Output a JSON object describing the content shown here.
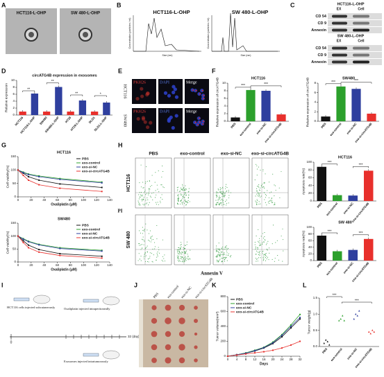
{
  "panels": {
    "A": {
      "letter": "A",
      "labels": [
        "HCT116-L-OHP",
        "SW 480-L-OHP"
      ]
    },
    "B": {
      "letter": "B",
      "charts": [
        {
          "title": "HCT116-L-OHP",
          "xlabel": "Size (nm)",
          "ylabel": "Concentration (particles / ml)"
        },
        {
          "title": "SW 480-L-OHP",
          "xlabel": "Size (nm)",
          "ylabel": "Concentration (particles / ml)"
        }
      ]
    },
    "C": {
      "letter": "C",
      "blots": [
        {
          "title": "HCT116-L-OHP",
          "columns": [
            "EX",
            "Cell"
          ],
          "rows": [
            "CD 54",
            "CD 9",
            "Annexin"
          ]
        },
        {
          "title": "SW 480-L-OHP",
          "columns": [
            "EX",
            "Cell"
          ],
          "rows": [
            "CD 54",
            "CD 9",
            "Annexin"
          ]
        }
      ]
    },
    "D": {
      "letter": "D",
      "chart": {
        "title": "circATG4B expression in exosomes",
        "ylabel": "Relative expression",
        "categories": [
          "HCT116",
          "HCT116-L-OHP",
          "SW480",
          "SW480-L-OHP",
          "HT29",
          "HT29-L-OHP",
          "DLD1",
          "DLD1-L-OHP"
        ],
        "values": [
          1,
          6.2,
          1,
          8.1,
          1,
          4.2,
          1,
          3.6
        ],
        "colors": [
          "#e8302c",
          "#2f3f9e",
          "#e8302c",
          "#2f3f9e",
          "#e8302c",
          "#2f3f9e",
          "#e8302c",
          "#2f3f9e"
        ],
        "ylim": [
          0,
          10
        ],
        "yticks": [
          0,
          2,
          4,
          6,
          8,
          10
        ],
        "annotations": [
          "**",
          "**",
          "**",
          "*"
        ]
      }
    },
    "E": {
      "letter": "E",
      "rows": [
        "HCT116",
        "SW480"
      ],
      "columns": [
        "PKH26",
        "DAPI",
        "Merge"
      ]
    },
    "F": {
      "letter": "F",
      "charts": [
        {
          "title": "HCT116",
          "ylabel": "Relative expression of circATG4B",
          "categories": [
            "PBS",
            "exo-control",
            "exo-si-NC",
            "exo-si-circATG4B"
          ],
          "values": [
            1,
            8.2,
            8.0,
            1.8
          ],
          "colors": [
            "#111111",
            "#2ca02c",
            "#2f3f9e",
            "#e8302c"
          ],
          "ylim": [
            0,
            10
          ],
          "yticks": [
            0,
            2,
            4,
            6,
            8,
            10
          ],
          "annotations": [
            "***",
            "***"
          ]
        },
        {
          "title": "SW480",
          "ylabel": "Relative expression of circATG4B",
          "categories": [
            "PBS",
            "exo-control",
            "exo-si-NC",
            "exo-si-circATG4B"
          ],
          "values": [
            1,
            7.3,
            6.8,
            1.6
          ],
          "colors": [
            "#111111",
            "#2ca02c",
            "#2f3f9e",
            "#e8302c"
          ],
          "ylim": [
            0,
            8
          ],
          "yticks": [
            0,
            2,
            4,
            6,
            8
          ],
          "annotations": [
            "***",
            "***"
          ]
        }
      ]
    },
    "G": {
      "letter": "G",
      "charts": [
        {
          "title": "HCT116",
          "xlabel": "Oxaliplatin (μM)",
          "ylabel": "Cell viability(%)",
          "x": [
            0,
            8,
            16,
            32,
            64,
            128
          ],
          "xlim": [
            0,
            140
          ],
          "xticks": [
            0,
            20,
            40,
            60,
            80,
            100,
            120,
            140
          ],
          "ylim": [
            0,
            150
          ],
          "yticks": [
            0,
            50,
            100,
            150
          ],
          "series": [
            {
              "name": "PBS",
              "color": "#111111",
              "values": [
                100,
                88,
                75,
                62,
                48,
                35
              ]
            },
            {
              "name": "exo-control",
              "color": "#2ca02c",
              "values": [
                100,
                92,
                85,
                78,
                68,
                55
              ]
            },
            {
              "name": "exo-si-NC",
              "color": "#2f3f9e",
              "values": [
                100,
                90,
                83,
                75,
                65,
                52
              ]
            },
            {
              "name": "exo-si-circATG4B",
              "color": "#e8302c",
              "values": [
                100,
                80,
                62,
                45,
                32,
                20
              ]
            }
          ]
        },
        {
          "title": "SW480",
          "xlabel": "Oxaliplatin (μM)",
          "ylabel": "Cell viability(%)",
          "x": [
            0,
            8,
            16,
            32,
            64,
            128
          ],
          "xlim": [
            0,
            140
          ],
          "xticks": [
            0,
            20,
            40,
            60,
            80,
            100,
            120,
            140
          ],
          "ylim": [
            0,
            150
          ],
          "yticks": [
            0,
            50,
            100,
            150
          ],
          "series": [
            {
              "name": "PBS",
              "color": "#111111",
              "values": [
                100,
                82,
                65,
                48,
                32,
                22
              ]
            },
            {
              "name": "exo-control",
              "color": "#2ca02c",
              "values": [
                100,
                90,
                80,
                68,
                55,
                45
              ]
            },
            {
              "name": "exo-si-NC",
              "color": "#2f3f9e",
              "values": [
                100,
                88,
                78,
                66,
                52,
                42
              ]
            },
            {
              "name": "exo-si-circATG4B",
              "color": "#e8302c",
              "values": [
                100,
                75,
                55,
                38,
                25,
                15
              ]
            }
          ]
        }
      ]
    },
    "H": {
      "letter": "H",
      "columns": [
        "PBS",
        "exo-control",
        "exo-si-NC",
        "exo-si-circATG4B"
      ],
      "rows": [
        "HCT116",
        "SW 480"
      ],
      "ylabel": "PI",
      "xlabel": "Annexin V",
      "charts": [
        {
          "title": "HCT116",
          "ylabel": "Apoptosis rate(%)",
          "categories": [
            "PBS",
            "exo-control",
            "exo-si-NC",
            "exo-si-circATG4B"
          ],
          "values": [
            88,
            15,
            14,
            78
          ],
          "colors": [
            "#111111",
            "#2ca02c",
            "#2f3f9e",
            "#e8302c"
          ],
          "ylim": [
            0,
            100
          ],
          "yticks": [
            0,
            20,
            40,
            60,
            80,
            100
          ],
          "annotations": [
            "***",
            "***"
          ]
        },
        {
          "title": "SW 480",
          "ylabel": "Apoptosis rate(%)",
          "categories": [
            "PBS",
            "exo-control",
            "exo-si-NC",
            "exo-si-circATG4B"
          ],
          "values": [
            75,
            28,
            32,
            65
          ],
          "colors": [
            "#111111",
            "#2ca02c",
            "#2f3f9e",
            "#e8302c"
          ],
          "ylim": [
            0,
            100
          ],
          "yticks": [
            0,
            20,
            40,
            60,
            80,
            100
          ],
          "annotations": [
            "***",
            "***"
          ]
        }
      ]
    },
    "I": {
      "letter": "I",
      "texts": [
        "HCT116 cells injected subcutaneously",
        "Oxaliplatin injected intraperitoneally",
        "Exosomes injected intratumorously"
      ],
      "start": "0",
      "end": "32 (day)"
    },
    "J": {
      "letter": "J",
      "labels": [
        "PBS",
        "exo-control",
        "exo-si-NC",
        "exo-si-circATG4B"
      ]
    },
    "K": {
      "letter": "K",
      "chart": {
        "xlabel": "Days",
        "ylabel": "Tumor volume(mm³)",
        "x": [
          0,
          4,
          8,
          12,
          16,
          20,
          24,
          28,
          32
        ],
        "xlim": [
          0,
          32
        ],
        "xticks": [
          0,
          4,
          8,
          12,
          16,
          20,
          24,
          28,
          32
        ],
        "ylim": [
          0,
          800
        ],
        "yticks": [
          0,
          200,
          400,
          600,
          800
        ],
        "series": [
          {
            "name": "PBS",
            "color": "#111111",
            "values": [
              0,
              20,
              40,
              70,
              110,
              170,
              260,
              380,
              500
            ]
          },
          {
            "name": "exo-control",
            "color": "#2ca02c",
            "values": [
              0,
              20,
              45,
              80,
              120,
              190,
              290,
              420,
              560
            ]
          },
          {
            "name": "exo-si-NC",
            "color": "#2f3f9e",
            "values": [
              0,
              20,
              40,
              75,
              115,
              180,
              280,
              400,
              520
            ]
          },
          {
            "name": "exo-si-circATG4B",
            "color": "#e8302c",
            "values": [
              0,
              15,
              30,
              45,
              60,
              80,
              110,
              150,
              200
            ]
          }
        ]
      }
    },
    "L": {
      "letter": "L",
      "chart": {
        "ylabel": "Tumor weight(g)",
        "ylim": [
          0,
          1.5
        ],
        "yticks": [
          {
            "value": 0,
            "label": "0.0"
          },
          {
            "value": 0.5,
            "label": "0.5"
          },
          {
            "value": 1,
            "label": "1.0"
          },
          {
            "value": 1.5,
            "label": "1.5"
          }
        ],
        "categories": [
          "PBS",
          "exo-control",
          "exo-si-NC",
          "exo-si-circATG4B"
        ],
        "colors": [
          "#111111",
          "#2ca02c",
          "#2f3f9e",
          "#e8302c"
        ],
        "groups": [
          [
            0.1,
            0.2,
            0.15,
            0.05
          ],
          [
            0.8,
            0.85,
            0.95,
            0.8
          ],
          [
            0.85,
            1.0,
            0.95,
            1.1
          ],
          [
            0.45,
            0.4,
            0.5,
            0.45
          ]
        ],
        "annotations": [
          "***",
          "***"
        ]
      }
    }
  }
}
